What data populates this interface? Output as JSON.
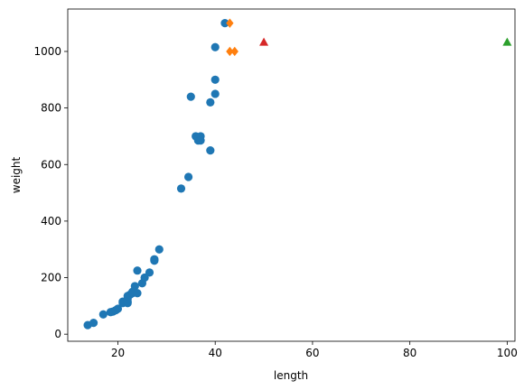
{
  "chart_data": {
    "type": "scatter",
    "title": "",
    "xlabel": "length",
    "ylabel": "weight",
    "xlim": [
      9.7,
      101.6
    ],
    "ylim": [
      -25,
      1150
    ],
    "xticks": [
      20,
      40,
      60,
      80,
      100
    ],
    "yticks": [
      0,
      200,
      400,
      600,
      800,
      1000
    ],
    "grid": false,
    "legend": "none",
    "series": [
      {
        "marker": "circle",
        "color": "#1f77b4",
        "points": [
          [
            13.8,
            32
          ],
          [
            15,
            40
          ],
          [
            17,
            70
          ],
          [
            18.5,
            78
          ],
          [
            19,
            80
          ],
          [
            19.6,
            85
          ],
          [
            20,
            90
          ],
          [
            21,
            115
          ],
          [
            21,
            110
          ],
          [
            22,
            110
          ],
          [
            22,
            115
          ],
          [
            22,
            125
          ],
          [
            22,
            135
          ],
          [
            22.5,
            140
          ],
          [
            23,
            145
          ],
          [
            23,
            150
          ],
          [
            23.5,
            170
          ],
          [
            24,
            145
          ],
          [
            24,
            225
          ],
          [
            25,
            180
          ],
          [
            25.5,
            200
          ],
          [
            26.5,
            218
          ],
          [
            27.5,
            260
          ],
          [
            27.5,
            265
          ],
          [
            28.5,
            300
          ],
          [
            33,
            515
          ],
          [
            34.5,
            556
          ],
          [
            35,
            840
          ],
          [
            36,
            700
          ],
          [
            36.5,
            685
          ],
          [
            36.5,
            690
          ],
          [
            37,
            700
          ],
          [
            37,
            685
          ],
          [
            39,
            820
          ],
          [
            39,
            650
          ],
          [
            40,
            1015
          ],
          [
            40,
            900
          ],
          [
            40,
            850
          ],
          [
            42,
            1100
          ]
        ]
      },
      {
        "marker": "diamond",
        "color": "#ff7f0e",
        "points": [
          [
            43,
            1100
          ],
          [
            43,
            1000
          ],
          [
            44,
            1000
          ]
        ]
      },
      {
        "marker": "triangle",
        "color": "#2ca02c",
        "points": [
          [
            100,
            1033
          ]
        ]
      },
      {
        "marker": "triangle",
        "color": "#d62728",
        "points": [
          [
            50,
            1033
          ]
        ]
      }
    ]
  }
}
